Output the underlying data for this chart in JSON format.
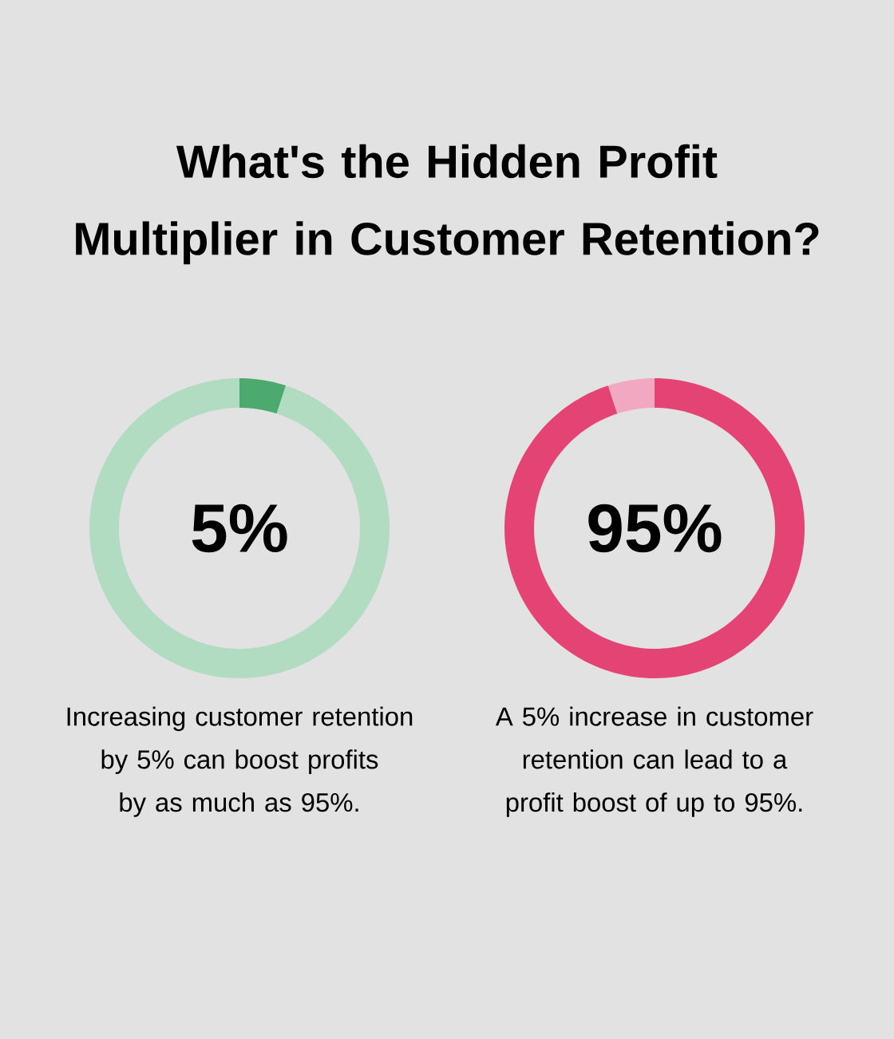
{
  "chart_data": [
    {
      "type": "donut",
      "title": "What's the Hidden Profit Multiplier in Customer Retention?",
      "categories": [
        null,
        null
      ],
      "values": [
        5,
        95
      ],
      "colors": [
        "#4caa6e",
        "#b1dcc2"
      ],
      "annotations": [
        "5%",
        "Increasing customer retention by 5% can boost profits by as much as 95%."
      ]
    },
    {
      "type": "donut",
      "categories": [
        null,
        null
      ],
      "values": [
        95,
        5
      ],
      "colors": [
        "#e44474",
        "#f2a8c0"
      ],
      "annotations": [
        "95%",
        "A 5% increase in customer retention can lead to a profit boost of up to 95%."
      ]
    }
  ]
}
